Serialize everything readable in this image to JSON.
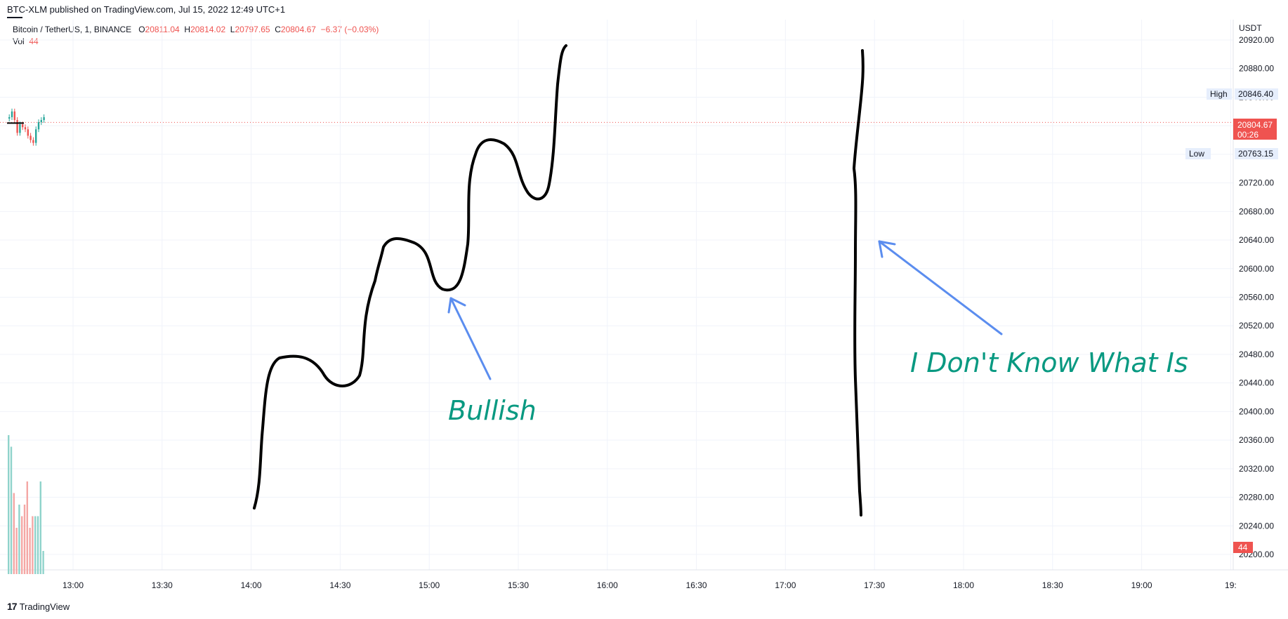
{
  "header": {
    "published": "BTC-XLM published on TradingView.com, Jul 15, 2022 12:49 UTC+1"
  },
  "legend": {
    "symbol": "Bitcoin / TetherUS, 1, BINANCE",
    "open_label": "O",
    "open": "20811.04",
    "high_label": "H",
    "high": "20814.02",
    "low_label": "L",
    "low": "20797.65",
    "close_label": "C",
    "close": "20804.67",
    "change": "−6.37 (−0.03%)",
    "vol_label": "Vol",
    "vol": "44"
  },
  "footer": {
    "logo": "17",
    "brand": "TradingView"
  },
  "colors": {
    "up": "#26a69a",
    "down": "#ef5350",
    "annotation_text": "#089981",
    "arrow": "#5b8def",
    "drawing": "#000000"
  },
  "chart_data": {
    "type": "line",
    "ylabel": "USDT",
    "x_ticks": [
      "13:00",
      "13:30",
      "14:00",
      "14:30",
      "15:00",
      "15:30",
      "16:00",
      "16:30",
      "17:00",
      "17:30",
      "18:00",
      "18:30",
      "19:00",
      "19:"
    ],
    "y_ticks": [
      "20920.00",
      "20880.00",
      "20840.00",
      "20800.00",
      "20760.00",
      "20720.00",
      "20680.00",
      "20640.00",
      "20600.00",
      "20560.00",
      "20520.00",
      "20480.00",
      "20440.00",
      "20400.00",
      "20360.00",
      "20320.00",
      "20280.00",
      "20240.00",
      "20200.00"
    ],
    "ylim": [
      20190,
      20940
    ],
    "markers": {
      "high_label": "High",
      "high": "20846.40",
      "low_label": "Low",
      "low": "20763.15",
      "last": "20804.67",
      "countdown": "00:26",
      "volume": "44"
    },
    "series": [
      {
        "name": "Bitcoin / TetherUS",
        "values": [
          20812,
          20820,
          20808,
          20790,
          20802,
          20798,
          20795,
          20786,
          20780,
          20776,
          20795,
          20805,
          20808,
          20812
        ]
      },
      {
        "name": "Vol",
        "values": [
          12,
          11,
          7,
          4,
          6,
          5,
          6,
          8,
          4,
          5,
          5,
          5,
          8,
          2
        ]
      }
    ],
    "annotations": [
      "Bullish",
      "I Don't Know What Is"
    ]
  }
}
